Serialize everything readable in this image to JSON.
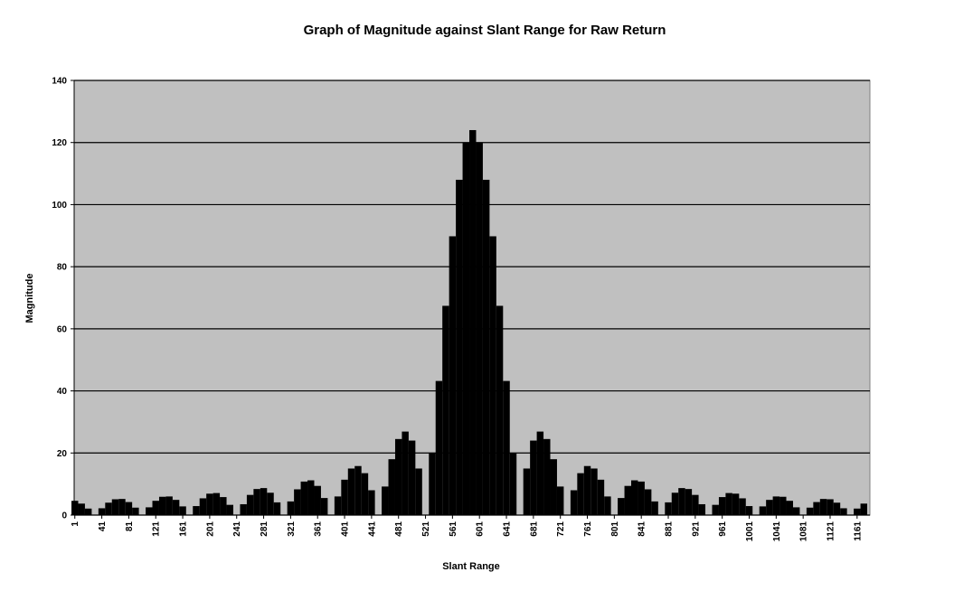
{
  "chart_data": {
    "type": "bar",
    "title": "Graph of Magnitude against Slant Range for Raw Return",
    "x_label": "Slant Range",
    "y_label": "Magnitude",
    "color": "#000000",
    "background": "#c0c0c0",
    "grid": true,
    "xlim": [
      0,
      1180
    ],
    "ylim": [
      0,
      140
    ],
    "yticks": [
      0,
      20,
      40,
      60,
      80,
      100,
      120,
      140
    ],
    "xticks": [
      1,
      41,
      81,
      121,
      161,
      201,
      241,
      281,
      321,
      361,
      401,
      441,
      481,
      521,
      561,
      601,
      641,
      681,
      721,
      761,
      801,
      841,
      881,
      921,
      961,
      1001,
      1041,
      1081,
      1121,
      1161
    ],
    "x": [
      1,
      11,
      21,
      31,
      41,
      51,
      61,
      71,
      81,
      91,
      101,
      111,
      121,
      131,
      141,
      151,
      161,
      171,
      181,
      191,
      201,
      211,
      221,
      231,
      241,
      251,
      261,
      271,
      281,
      291,
      301,
      311,
      321,
      331,
      341,
      351,
      361,
      371,
      381,
      391,
      401,
      411,
      421,
      431,
      441,
      451,
      461,
      471,
      481,
      491,
      501,
      511,
      521,
      531,
      541,
      551,
      561,
      571,
      581,
      591,
      601,
      611,
      621,
      631,
      641,
      651,
      661,
      671,
      681,
      691,
      701,
      711,
      721,
      731,
      741,
      751,
      761,
      771,
      781,
      791,
      801,
      811,
      821,
      831,
      841,
      851,
      861,
      871,
      881,
      891,
      901,
      911,
      921,
      931,
      941,
      951,
      961,
      971,
      981,
      991,
      1001,
      1011,
      1021,
      1031,
      1041,
      1051,
      1061,
      1071,
      1081,
      1091,
      1101,
      1111,
      1121,
      1131,
      1141,
      1151,
      1161,
      1171
    ],
    "values": [
      4.6,
      3.7,
      2.1,
      0,
      2.2,
      4.0,
      5.1,
      5.2,
      4.2,
      2.4,
      0,
      2.5,
      4.6,
      5.9,
      6.0,
      4.9,
      2.8,
      0,
      2.9,
      5.4,
      6.9,
      7.1,
      5.8,
      3.3,
      0,
      3.5,
      6.5,
      8.4,
      8.7,
      7.2,
      4.1,
      0,
      4.4,
      8.3,
      10.8,
      11.2,
      9.4,
      5.5,
      0,
      6.0,
      11.4,
      15.0,
      15.8,
      13.5,
      8.0,
      0,
      9.2,
      18.0,
      24.5,
      26.9,
      24.0,
      15.0,
      0,
      20.0,
      43.2,
      67.4,
      89.8,
      108,
      119.9,
      124,
      119.9,
      108,
      89.8,
      67.4,
      43.2,
      20.0,
      0,
      15.0,
      24.0,
      26.9,
      24.5,
      18.0,
      9.2,
      0,
      8.0,
      13.5,
      15.8,
      15.0,
      11.4,
      6.0,
      0,
      5.5,
      9.4,
      11.2,
      10.8,
      8.3,
      4.4,
      0,
      4.1,
      7.2,
      8.7,
      8.4,
      6.5,
      3.5,
      0,
      3.3,
      5.8,
      7.1,
      6.9,
      5.4,
      2.9,
      0,
      2.8,
      4.9,
      6.0,
      5.9,
      4.6,
      2.5,
      0,
      2.4,
      4.2,
      5.2,
      5.1,
      4.0,
      2.2,
      0,
      2.1,
      3.7
    ]
  }
}
